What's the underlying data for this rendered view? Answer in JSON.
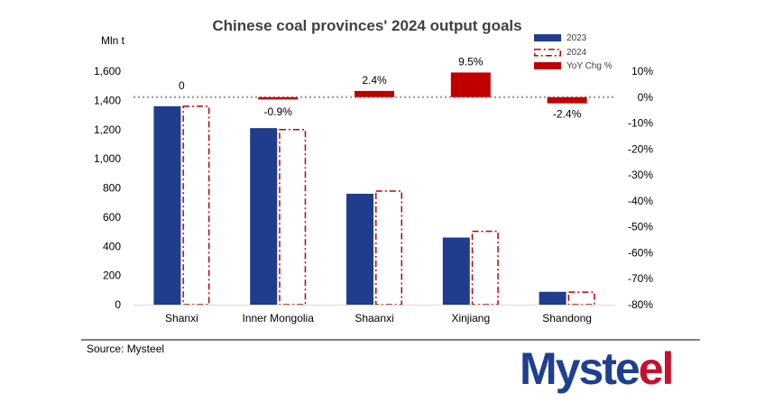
{
  "chart_data": {
    "type": "bar",
    "title": "Chinese coal provinces' 2024 output goals",
    "ylabel": "Mln t",
    "categories": [
      "Shanxi",
      "Inner Mongolia",
      "Shaanxi",
      "Xinjiang",
      "Shandong"
    ],
    "series": [
      {
        "name": "2023",
        "values": [
          1360,
          1210,
          760,
          460,
          88
        ]
      },
      {
        "name": "2024",
        "values": [
          1360,
          1200,
          778,
          503,
          86
        ]
      },
      {
        "name": "YoY Chg %",
        "axis": "right",
        "values": [
          0,
          -0.9,
          2.4,
          9.5,
          -2.4
        ],
        "labels": [
          "0",
          "-0.9%",
          "2.4%",
          "9.5%",
          "-2.4%"
        ]
      }
    ],
    "ylim": [
      0,
      1600
    ],
    "yticks": [
      "0",
      "200",
      "400",
      "600",
      "800",
      "1,000",
      "1,200",
      "1,400",
      "1,600"
    ],
    "y2lim": [
      -80,
      10
    ],
    "y2ticks": [
      "-80%",
      "-70%",
      "-60%",
      "-50%",
      "-40%",
      "-30%",
      "-20%",
      "-10%",
      "0%",
      "10%"
    ],
    "legend_position": "top-right",
    "colors": {
      "2023": "#1f3d8c",
      "2024_outline": "#c00000",
      "YoY Chg %": "#c00000",
      "zero_line": "#a6a6a6"
    }
  },
  "source": "Source: Mysteel",
  "logo": {
    "part1": "Myste",
    "part2": "el"
  }
}
